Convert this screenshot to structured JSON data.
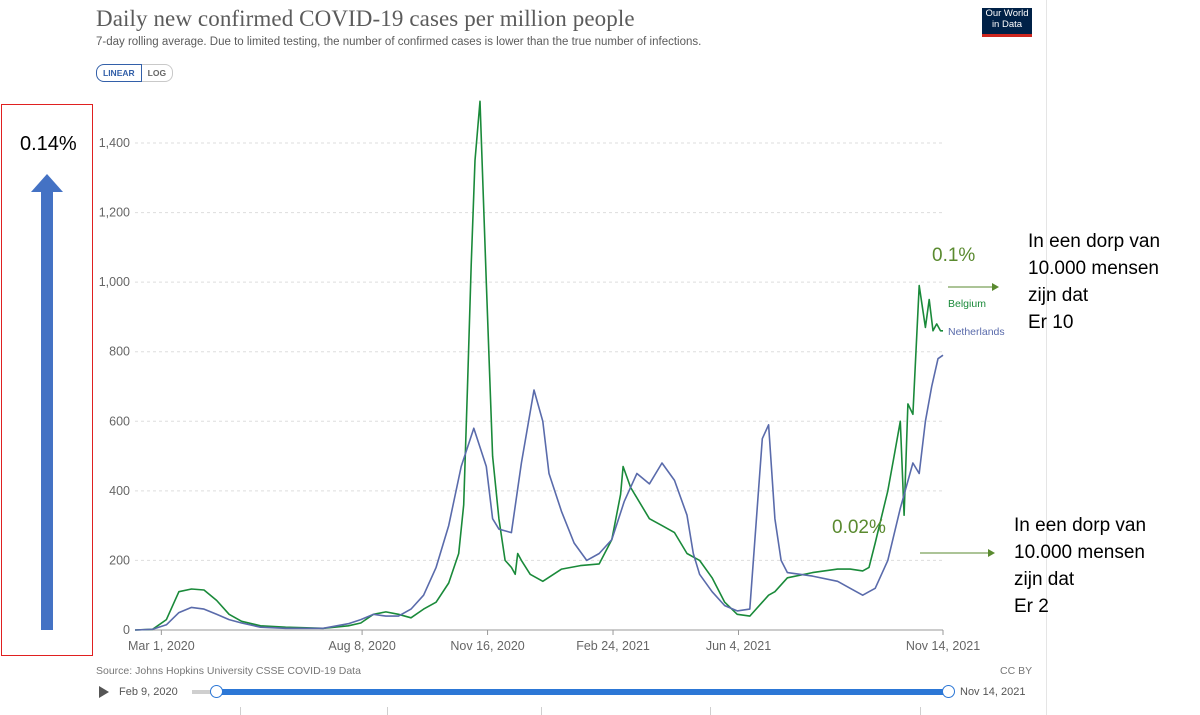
{
  "header": {
    "title": "Daily new confirmed COVID-19 cases per million people",
    "subtitle": "7-day rolling average. Due to limited testing, the number of confirmed cases is lower than the true number of infections.",
    "logo_line1": "Our World",
    "logo_line2": "in Data"
  },
  "scale_toggle": {
    "linear": "LINEAR",
    "log": "LOG",
    "selected": "LINEAR"
  },
  "chart_data": {
    "type": "line",
    "title": "Daily new confirmed COVID-19 cases per million people",
    "xlabel": "",
    "ylabel": "",
    "x_range": [
      "2020-02-09",
      "2021-11-14"
    ],
    "ylim": [
      0,
      1500
    ],
    "y_ticks": [
      0,
      200,
      400,
      600,
      800,
      1000,
      1200,
      1400
    ],
    "y_tick_labels": [
      "0",
      "200",
      "400",
      "600",
      "800",
      "1,000",
      "1,200",
      "1,400"
    ],
    "x_tick_labels": [
      "Mar 1, 2020",
      "Aug 8, 2020",
      "Nov 16, 2020",
      "Feb 24, 2021",
      "Jun 4, 2021",
      "Nov 14, 2021"
    ],
    "x_tick_days": [
      21,
      181,
      281,
      381,
      481,
      644
    ],
    "grid": true,
    "series": [
      {
        "name": "Belgium",
        "color": "#1a8a3a",
        "days": [
          0,
          14,
          25,
          35,
          45,
          55,
          65,
          75,
          85,
          100,
          120,
          150,
          170,
          180,
          190,
          200,
          210,
          220,
          230,
          240,
          250,
          258,
          262,
          265,
          268,
          271,
          275,
          280,
          285,
          290,
          295,
          300,
          303,
          305,
          308,
          315,
          325,
          340,
          355,
          370,
          380,
          387,
          389,
          395,
          410,
          420,
          430,
          440,
          450,
          460,
          470,
          480,
          490,
          500,
          505,
          510,
          520,
          540,
          560,
          570,
          580,
          585,
          590,
          600,
          605,
          610,
          613,
          616,
          620,
          625,
          630,
          633,
          636,
          639,
          642,
          644
        ],
        "values": [
          0,
          2,
          30,
          110,
          118,
          115,
          85,
          45,
          25,
          12,
          8,
          5,
          12,
          20,
          45,
          52,
          45,
          35,
          60,
          80,
          135,
          220,
          360,
          700,
          1050,
          1350,
          1520,
          1000,
          500,
          320,
          200,
          180,
          160,
          220,
          200,
          160,
          140,
          175,
          185,
          190,
          260,
          390,
          470,
          410,
          320,
          300,
          280,
          220,
          200,
          150,
          80,
          45,
          40,
          80,
          100,
          110,
          150,
          165,
          175,
          175,
          170,
          180,
          250,
          400,
          500,
          600,
          330,
          650,
          620,
          990,
          870,
          950,
          860,
          880,
          860,
          860
        ]
      },
      {
        "name": "Netherlands",
        "color": "#5a6bab",
        "days": [
          0,
          14,
          25,
          35,
          45,
          55,
          65,
          75,
          85,
          100,
          120,
          150,
          170,
          180,
          190,
          200,
          210,
          220,
          230,
          240,
          250,
          260,
          270,
          280,
          285,
          290,
          300,
          308,
          318,
          325,
          330,
          340,
          350,
          360,
          370,
          380,
          390,
          400,
          410,
          420,
          430,
          440,
          445,
          450,
          460,
          470,
          480,
          490,
          500,
          505,
          510,
          515,
          520,
          530,
          540,
          560,
          570,
          580,
          585,
          590,
          600,
          610,
          620,
          625,
          630,
          635,
          640,
          644
        ],
        "values": [
          0,
          2,
          15,
          50,
          65,
          60,
          45,
          30,
          20,
          8,
          5,
          5,
          18,
          30,
          45,
          40,
          40,
          60,
          100,
          180,
          300,
          470,
          580,
          470,
          320,
          290,
          280,
          480,
          690,
          600,
          450,
          340,
          250,
          200,
          220,
          260,
          370,
          450,
          420,
          480,
          430,
          330,
          220,
          160,
          110,
          70,
          55,
          60,
          550,
          590,
          320,
          200,
          165,
          160,
          155,
          140,
          120,
          100,
          110,
          120,
          200,
          350,
          480,
          450,
          600,
          700,
          780,
          790
        ]
      }
    ],
    "end_labels": {
      "belgium": "Belgium",
      "netherlands": "Netherlands"
    }
  },
  "annotations": {
    "left_box_pct": "0.14%",
    "pct_high": "0.1%",
    "pct_low": "0.02%",
    "note_high": [
      "In een dorp van",
      "10.000 mensen",
      "zijn dat",
      "Er 10"
    ],
    "note_low": [
      "In een dorp van",
      "10.000 mensen",
      "zijn dat",
      "Er 2"
    ],
    "arrow_color": "#4472c4",
    "green_text_color": "#5a8a2f"
  },
  "footer": {
    "source": "Source: Johns Hopkins University CSSE COVID-19 Data",
    "license": "CC BY",
    "timeline_start": "Feb 9, 2020",
    "timeline_end": "Nov 14, 2021"
  }
}
